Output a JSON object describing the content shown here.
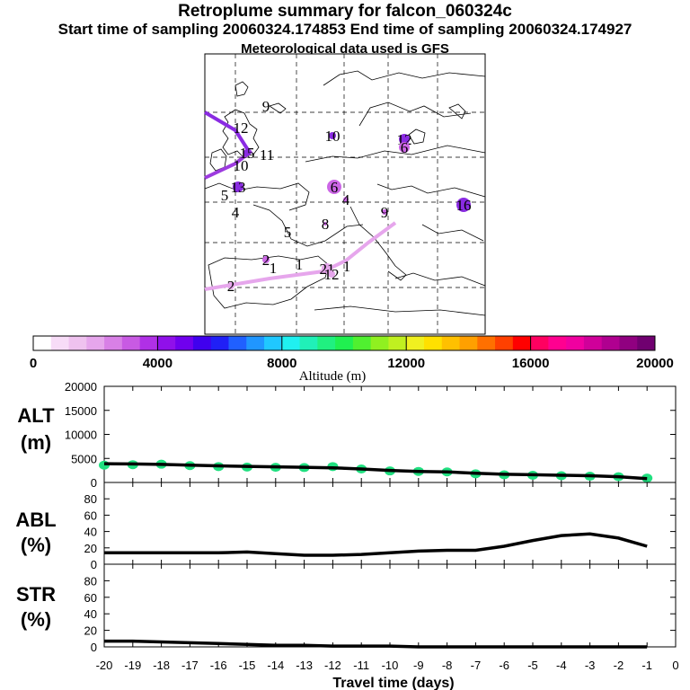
{
  "header": {
    "title": "Retroplume summary for falcon_060324c",
    "sampling": "Start time of sampling 20060324.174853     End time of sampling 20060324.174927",
    "met": "Meteorological data used is GFS"
  },
  "map": {
    "tracks": [
      {
        "color": "#8a2be2",
        "name": "track-north-1"
      },
      {
        "color": "#9d3bdf",
        "name": "track-north-2"
      },
      {
        "color": "#e6a6ec",
        "name": "track-south"
      }
    ],
    "markers": [
      {
        "label": "9",
        "color": "#8a2be2"
      },
      {
        "label": "12",
        "color": "#8a2be2"
      },
      {
        "label": "10",
        "color": "#8a2be2"
      },
      {
        "label": "15",
        "color": "#8a2be2"
      },
      {
        "label": "11",
        "color": "#8a2be2"
      },
      {
        "label": "10",
        "color": "#8a2be2"
      },
      {
        "label": "12",
        "color": "#8a2be2"
      },
      {
        "label": "6",
        "color": "#cc66e6"
      },
      {
        "label": "16",
        "color": "#8a2be2"
      },
      {
        "label": "5",
        "color": "#cc66e6"
      },
      {
        "label": "13",
        "color": "#8a2be2"
      },
      {
        "label": "6",
        "color": "#cc66e6"
      },
      {
        "label": "4",
        "color": "#cc66e6"
      },
      {
        "label": "9",
        "color": "#cc66e6"
      },
      {
        "label": "4",
        "color": "#cc66e6"
      },
      {
        "label": "5",
        "color": "#cc66e6"
      },
      {
        "label": "8",
        "color": "#cc66e6"
      },
      {
        "label": "2",
        "color": "#cc66e6"
      },
      {
        "label": "1",
        "color": "#e6a6ec"
      },
      {
        "label": "1",
        "color": "#e6a6ec"
      },
      {
        "label": "21",
        "color": "#e6a6ec"
      },
      {
        "label": "12",
        "color": "#e6a6ec"
      },
      {
        "label": "1",
        "color": "#e6a6ec"
      },
      {
        "label": "2",
        "color": "#e6a6ec"
      }
    ]
  },
  "colorbar": {
    "ticks": [
      "0",
      "4000",
      "8000",
      "12000",
      "16000",
      "20000"
    ],
    "label": "Altitude (m)",
    "colors": [
      "#ffffff",
      "#f7dcf7",
      "#efc2ef",
      "#e6a6ec",
      "#d880e6",
      "#c85ae3",
      "#b030e6",
      "#9010ea",
      "#7000ee",
      "#4000ee",
      "#2020f6",
      "#2060ff",
      "#2096ff",
      "#20c8ff",
      "#20f0f0",
      "#20f0b8",
      "#20f080",
      "#20f050",
      "#50f030",
      "#90f020",
      "#c0f020",
      "#f0f020",
      "#ffe000",
      "#ffc000",
      "#ffa000",
      "#ff7000",
      "#ff4000",
      "#ff0000",
      "#ff0060",
      "#ff0090",
      "#f000a0",
      "#d0009a",
      "#b00090",
      "#900080",
      "#700070"
    ]
  },
  "chart_data": [
    {
      "type": "line",
      "name": "ALT",
      "ylabel": "ALT (m)",
      "x": [
        -20,
        -19,
        -18,
        -17,
        -16,
        -15,
        -14,
        -13,
        -12,
        -11,
        -10,
        -9,
        -8,
        -7,
        -6,
        -5,
        -4,
        -3,
        -2,
        -1
      ],
      "values": [
        3900,
        3850,
        3750,
        3600,
        3450,
        3350,
        3250,
        3150,
        3050,
        2800,
        2500,
        2300,
        2200,
        1900,
        1700,
        1600,
        1500,
        1400,
        1200,
        800
      ],
      "yticks": [
        "0",
        "5000",
        "10000",
        "15000",
        "20000"
      ],
      "ylim": [
        0,
        20000
      ]
    },
    {
      "type": "line",
      "name": "ABL",
      "ylabel": "ABL (%)",
      "x": [
        -20,
        -19,
        -18,
        -17,
        -16,
        -15,
        -14,
        -13,
        -12,
        -11,
        -10,
        -9,
        -8,
        -7,
        -6,
        -5,
        -4,
        -3,
        -2,
        -1
      ],
      "values": [
        14,
        14,
        14,
        14,
        14,
        15,
        13,
        11,
        11,
        12,
        14,
        16,
        17,
        17,
        22,
        29,
        35,
        37,
        32,
        22
      ],
      "yticks": [
        "0",
        "20",
        "40",
        "60",
        "80"
      ],
      "ylim": [
        0,
        100
      ]
    },
    {
      "type": "line",
      "name": "STR",
      "ylabel": "STR (%)",
      "x": [
        -20,
        -19,
        -18,
        -17,
        -16,
        -15,
        -14,
        -13,
        -12,
        -11,
        -10,
        -9,
        -8,
        -7,
        -6,
        -5,
        -4,
        -3,
        -2,
        -1
      ],
      "values": [
        7,
        7,
        6,
        5,
        4,
        3,
        2,
        2,
        1,
        1,
        1,
        0,
        0,
        0,
        0,
        0,
        0,
        0,
        0,
        0
      ],
      "yticks": [
        "0",
        "20",
        "40",
        "60",
        "80"
      ],
      "ylim": [
        0,
        100
      ]
    }
  ],
  "xaxis": {
    "ticks": [
      "-20",
      "-19",
      "-18",
      "-17",
      "-16",
      "-15",
      "-14",
      "-13",
      "-12",
      "-11",
      "-10",
      "-9",
      "-8",
      "-7",
      "-6",
      "-5",
      "-4",
      "-3",
      "-2",
      "-1",
      "0"
    ],
    "label": "Travel time (days)"
  },
  "panel_labels": {
    "alt_top": "ALT",
    "alt_bottom": "(m)",
    "abl_top": "ABL",
    "abl_bottom": "(%)",
    "str_top": "STR",
    "str_bottom": "(%)"
  }
}
